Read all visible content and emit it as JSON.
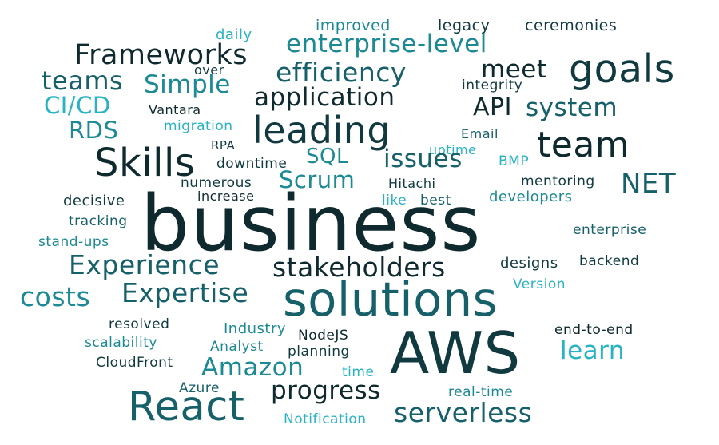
{
  "words": {
    "business": "business",
    "solutions": "solutions",
    "aws": "AWS",
    "react": "React",
    "leading": "leading",
    "team": "team",
    "skills": "Skills",
    "goals": "goals",
    "frameworks": "Frameworks",
    "enterprise_level": "enterprise-level",
    "efficiency": "efficiency",
    "application": "application",
    "experience": "Experience",
    "stakeholders": "stakeholders",
    "expertise": "Expertise",
    "costs": "costs",
    "amazon": "Amazon",
    "progress": "progress",
    "serverless": "serverless",
    "learn": "learn",
    "system": "system",
    "meet": "meet",
    "api": "API",
    "net": "NET",
    "scrum": "Scrum",
    "sql": "SQL",
    "issues": "issues",
    "teams": "teams",
    "simple": "Simple",
    "cicd": "CI/CD",
    "rds": "RDS",
    "improved": "improved",
    "legacy": "legacy",
    "ceremonies": "ceremonies",
    "daily": "daily",
    "over": "over",
    "integrity": "integrity",
    "vantara": "Vantara",
    "migration": "migration",
    "email": "Email",
    "rpa": "RPA",
    "uptime": "uptime",
    "bmp": "BMP",
    "downtime": "downtime",
    "numerous": "numerous",
    "hitachi": "Hitachi",
    "mentoring": "mentoring",
    "increase": "increase",
    "decisive": "decisive",
    "like": "like",
    "best": "best",
    "developers": "developers",
    "tracking": "tracking",
    "stand_ups": "stand-ups",
    "enterprise": "enterprise",
    "designs": "designs",
    "backend": "backend",
    "version": "Version",
    "resolved": "resolved",
    "industry": "Industry",
    "nodejs": "NodeJS",
    "end_to_end": "end-to-end",
    "scalability": "scalability",
    "analyst": "Analyst",
    "planning": "planning",
    "cloudfront": "CloudFront",
    "time": "time",
    "azure": "Azure",
    "real_time": "real-time",
    "notification": "Notification"
  }
}
